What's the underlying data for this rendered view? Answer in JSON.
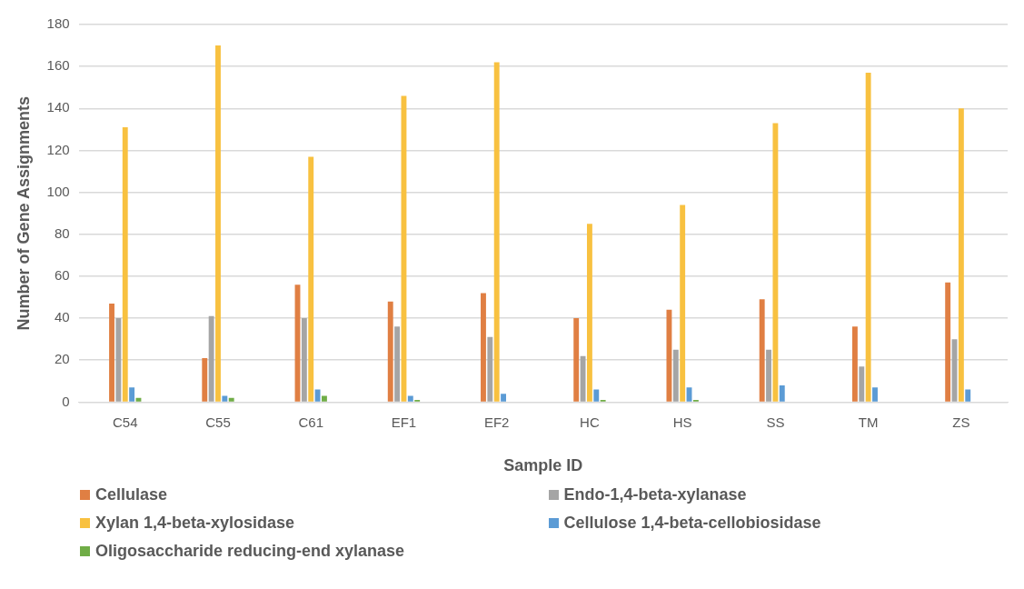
{
  "chart_data": {
    "type": "bar",
    "xlabel": "Sample ID",
    "ylabel": "Number of Gene Assignments",
    "categories": [
      "C54",
      "C55",
      "C61",
      "EF1",
      "EF2",
      "HC",
      "HS",
      "SS",
      "TM",
      "ZS"
    ],
    "series": [
      {
        "name": "Cellulase",
        "color": "#e07f43",
        "values": [
          47,
          21,
          56,
          48,
          52,
          40,
          44,
          49,
          36,
          57
        ]
      },
      {
        "name": "Endo-1,4-beta-xylanase",
        "color": "#a5a5a5",
        "values": [
          40,
          41,
          40,
          36,
          31,
          22,
          25,
          25,
          17,
          30
        ]
      },
      {
        "name": "Xylan 1,4-beta-xylosidase",
        "color": "#f8c140",
        "values": [
          131,
          170,
          117,
          146,
          162,
          85,
          94,
          133,
          157,
          140
        ]
      },
      {
        "name": "Cellulose 1,4-beta-cellobiosidase",
        "color": "#5b9bd5",
        "values": [
          7,
          3,
          6,
          3,
          4,
          6,
          7,
          8,
          7,
          6
        ]
      },
      {
        "name": "Oligosaccharide reducing-end xylanase",
        "color": "#70ad47",
        "values": [
          2,
          2,
          3,
          1,
          0,
          1,
          1,
          0,
          0,
          0
        ]
      }
    ],
    "ylim": [
      0,
      180
    ],
    "yticks": [
      0,
      20,
      40,
      60,
      80,
      100,
      120,
      140,
      160,
      180
    ],
    "grid": "y",
    "legend": "bottom"
  }
}
